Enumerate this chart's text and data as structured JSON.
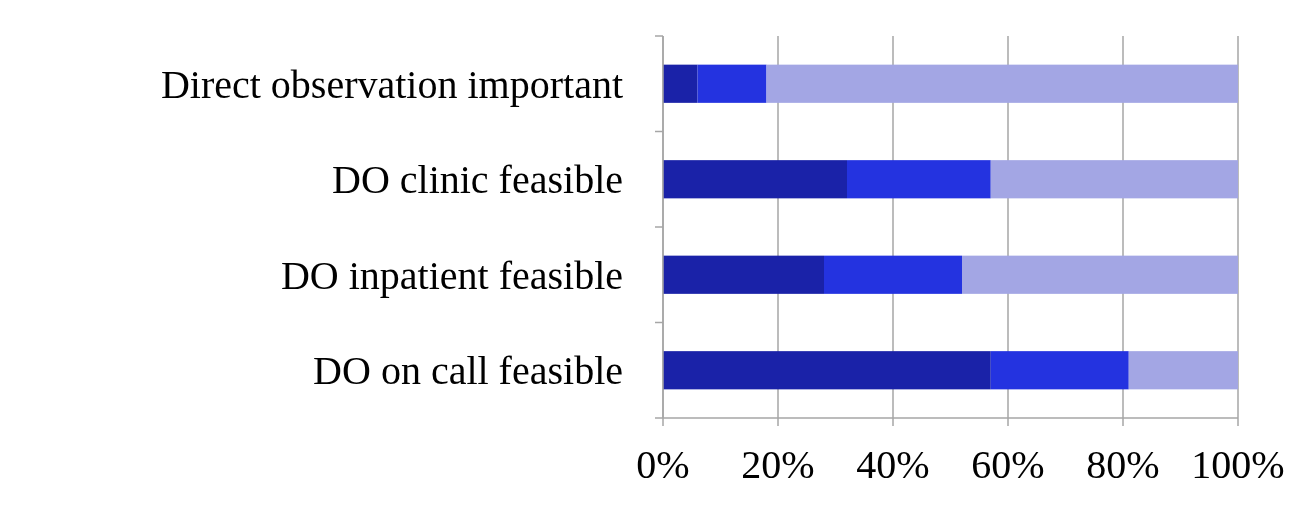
{
  "chart_data": {
    "type": "bar",
    "orientation": "horizontal",
    "stacked": true,
    "categories": [
      "Direct observation important",
      "DO clinic feasible",
      "DO inpatient feasible",
      "DO on call feasible"
    ],
    "series": [
      {
        "color": "#1a22a8",
        "values": [
          6,
          32,
          28,
          57
        ]
      },
      {
        "color": "#2433e0",
        "values": [
          12,
          25,
          24,
          24
        ]
      },
      {
        "color": "#a3a6e4",
        "values": [
          82,
          43,
          48,
          19
        ]
      }
    ],
    "xlim": [
      0,
      100
    ],
    "xticks": [
      {
        "value": 0,
        "label": "0%"
      },
      {
        "value": 20,
        "label": "20%"
      },
      {
        "value": 40,
        "label": "40%"
      },
      {
        "value": 60,
        "label": "60%"
      },
      {
        "value": 80,
        "label": "80%"
      },
      {
        "value": 100,
        "label": "100%"
      }
    ],
    "grid": "x"
  }
}
